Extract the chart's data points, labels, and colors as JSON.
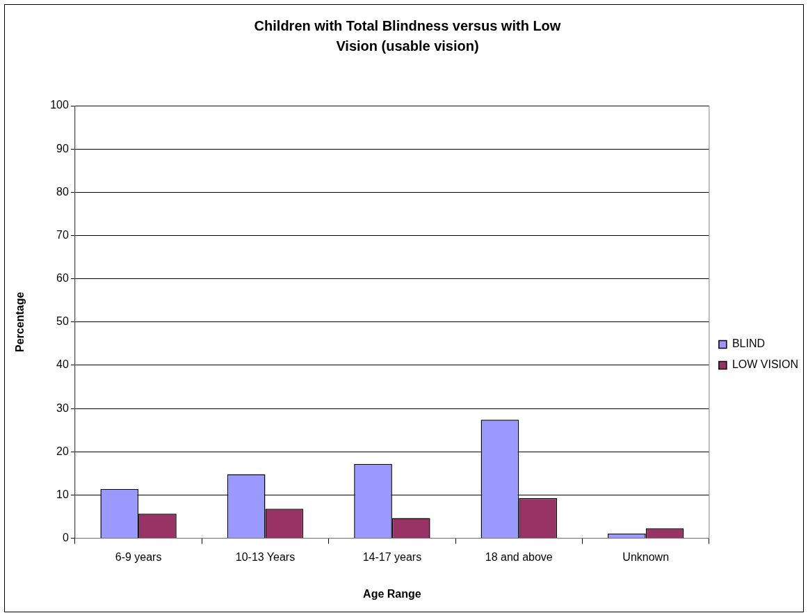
{
  "chart_data": {
    "type": "bar",
    "title": "Children with Total Blindness versus with Low Vision (usable vision)",
    "xlabel": "Age Range",
    "ylabel": "Percentage",
    "categories": [
      "6-9 years",
      "10-13 Years",
      "14-17 years",
      "18 and above",
      "Unknown"
    ],
    "series": [
      {
        "name": "BLIND",
        "color": "#9999ff",
        "values": [
          11.4,
          14.8,
          17.2,
          27.4,
          1.1
        ]
      },
      {
        "name": "LOW VISION",
        "color": "#993366",
        "values": [
          5.7,
          6.8,
          4.7,
          9.3,
          2.3
        ]
      }
    ],
    "ylim": [
      0,
      100
    ],
    "yticks": [
      0,
      10,
      20,
      30,
      40,
      50,
      60,
      70,
      80,
      90,
      100
    ],
    "grid": "y",
    "legend": "right"
  }
}
